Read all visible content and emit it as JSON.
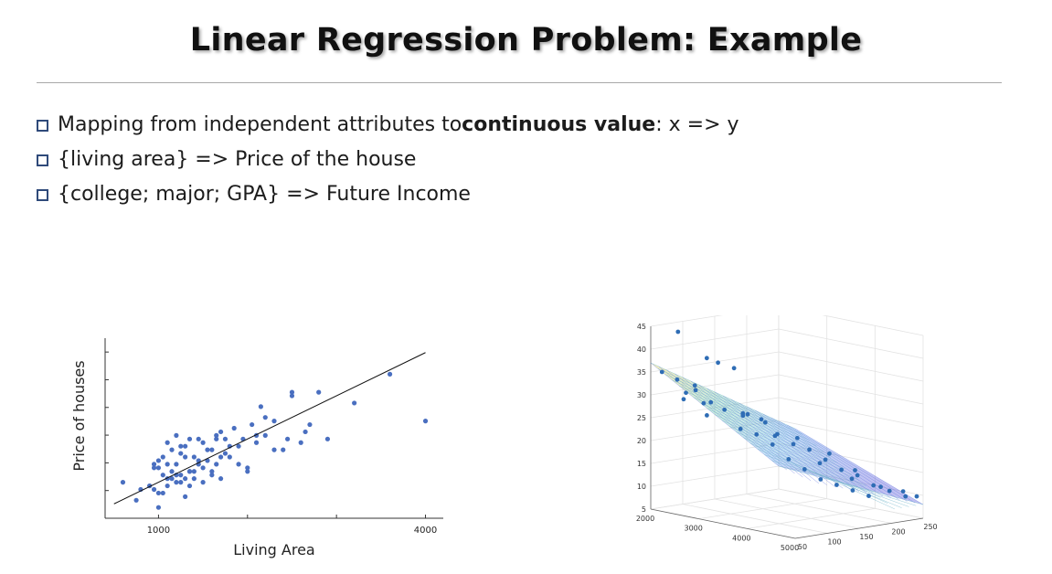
{
  "slide": {
    "title": "Linear Regression Problem: Example",
    "bullets": [
      {
        "prefix": "Mapping from independent attributes to ",
        "bold": "continuous value",
        "suffix": ": x => y"
      },
      {
        "prefix": "{living area} => Price of the house",
        "bold": "",
        "suffix": ""
      },
      {
        "prefix": "{college; major; GPA} => Future Income",
        "bold": "",
        "suffix": ""
      }
    ]
  },
  "chart_data": [
    {
      "type": "scatter",
      "xlabel": "Living Area",
      "ylabel": "Price of houses",
      "xticks": [
        1000,
        4000
      ],
      "xlim": [
        400,
        4200
      ],
      "ylim": [
        0,
        100
      ],
      "fit_line": {
        "x": [
          500,
          4000
        ],
        "y": [
          8,
          92
        ]
      },
      "points": {
        "x": [
          600,
          750,
          800,
          900,
          950,
          950,
          1000,
          1000,
          1050,
          1050,
          1100,
          1100,
          1100,
          1150,
          1150,
          1200,
          1200,
          1200,
          1250,
          1250,
          1300,
          1300,
          1300,
          1350,
          1350,
          1400,
          1400,
          1450,
          1450,
          1500,
          1500,
          1550,
          1600,
          1600,
          1650,
          1650,
          1700,
          1700,
          1750,
          1750,
          1800,
          1850,
          1900,
          1950,
          2000,
          2050,
          2100,
          2200,
          2300,
          2450,
          2500,
          2650,
          2700,
          2800,
          2900,
          3200,
          3600,
          4000,
          1000,
          1100,
          1200,
          1250,
          1300,
          1350,
          1400,
          1500,
          1600,
          1700,
          1800,
          1900,
          2000,
          2100,
          2150,
          2200,
          2300,
          2400,
          2500,
          2600,
          1050,
          1150,
          1250,
          1350,
          1450,
          1550,
          1650,
          900,
          950,
          1000
        ],
        "y": [
          20,
          10,
          16,
          18,
          16,
          30,
          6,
          28,
          14,
          34,
          22,
          30,
          42,
          26,
          38,
          20,
          30,
          46,
          24,
          36,
          22,
          34,
          40,
          18,
          44,
          26,
          34,
          30,
          44,
          28,
          42,
          32,
          24,
          38,
          30,
          46,
          22,
          48,
          36,
          44,
          34,
          50,
          40,
          44,
          26,
          52,
          42,
          56,
          38,
          44,
          68,
          48,
          52,
          70,
          44,
          64,
          80,
          54,
          14,
          18,
          24,
          40,
          12,
          26,
          22,
          20,
          26,
          34,
          40,
          30,
          28,
          46,
          62,
          46,
          54,
          38,
          70,
          42,
          24,
          22,
          20,
          26,
          32,
          38,
          44,
          18,
          28,
          32
        ]
      }
    },
    {
      "type": "scatter",
      "subtype": "3d-scatter-with-plane",
      "zticks": [
        5,
        10,
        15,
        20,
        25,
        30,
        35,
        40,
        45
      ],
      "xticks": [
        2000,
        3000,
        4000,
        5000
      ],
      "yticks": [
        50,
        100,
        150,
        200,
        250
      ],
      "xlim": [
        2000,
        5000
      ],
      "ylim": [
        50,
        250
      ],
      "zlim": [
        5,
        45
      ],
      "points": {
        "x": [
          2100,
          2150,
          2300,
          2400,
          2500,
          2550,
          2600,
          2700,
          2800,
          2900,
          2950,
          3000,
          3100,
          3200,
          3300,
          3400,
          3500,
          3600,
          3700,
          3800,
          3900,
          4000,
          4100,
          4200,
          4300,
          4400,
          4500,
          4600,
          4700,
          4800,
          4900,
          5000,
          2200,
          2450,
          2650,
          2850,
          3050,
          3250,
          3450,
          3650,
          3850,
          4050,
          4250,
          4450,
          4650,
          4850
        ],
        "y": [
          60,
          80,
          70,
          90,
          100,
          60,
          110,
          80,
          120,
          70,
          130,
          90,
          140,
          100,
          150,
          110,
          160,
          120,
          170,
          130,
          180,
          140,
          190,
          150,
          200,
          160,
          210,
          170,
          220,
          180,
          230,
          240,
          90,
          110,
          70,
          130,
          150,
          100,
          170,
          120,
          190,
          160,
          200,
          180,
          210,
          230
        ],
        "z": [
          35,
          33,
          44,
          31,
          38,
          30,
          37,
          29,
          36,
          27,
          26,
          28,
          25,
          24,
          22,
          23,
          20,
          21,
          19,
          18,
          17,
          16,
          15,
          14,
          14,
          13,
          12,
          12,
          11,
          11,
          10,
          10,
          30,
          28,
          33,
          26,
          24,
          27,
          21,
          23,
          18,
          17,
          15,
          14,
          12,
          11
        ]
      }
    }
  ]
}
